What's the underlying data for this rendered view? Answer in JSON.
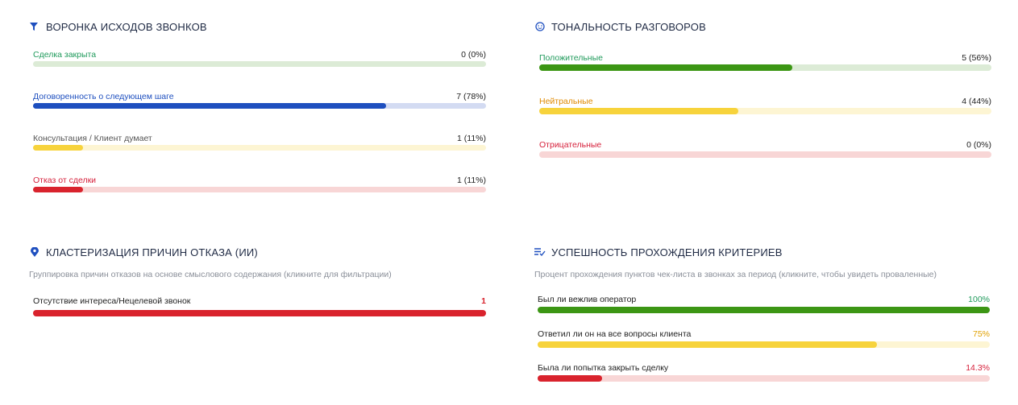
{
  "funnel": {
    "title": "ВОРОНКА ИСХОДОВ ЗВОНКОВ",
    "items": [
      {
        "label": "Сделка закрыта",
        "value": 0,
        "value_label": "0 (0%)",
        "label_color": "#1f9a5b",
        "value_color": "#222222",
        "bar_color": "#3c9614",
        "track_color": "#dcebd6"
      },
      {
        "label": "Договоренность о следующем шаге",
        "value": 78,
        "value_label": "7 (78%)",
        "label_color": "#1e4fbf",
        "value_color": "#222222",
        "bar_color": "#1e4fbf",
        "track_color": "#d3dbf2"
      },
      {
        "label": "Консультация / Клиент думает",
        "value": 11,
        "value_label": "1 (11%)",
        "label_color": "#555555",
        "value_color": "#222222",
        "bar_color": "#f7d33c",
        "track_color": "#fdf5d3"
      },
      {
        "label": "Отказ от сделки",
        "value": 11,
        "value_label": "1 (11%)",
        "label_color": "#d6203b",
        "value_color": "#222222",
        "bar_color": "#d9232d",
        "track_color": "#f8d6d6"
      }
    ]
  },
  "tone": {
    "title": "ТОНАЛЬНОСТЬ РАЗГОВОРОВ",
    "items": [
      {
        "label": "Положительные",
        "value": 56,
        "value_label": "5 (56%)",
        "label_color": "#1f9a5b",
        "value_color": "#222222",
        "bar_color": "#3c9614",
        "track_color": "#dcebd6"
      },
      {
        "label": "Нейтральные",
        "value": 44,
        "value_label": "4 (44%)",
        "label_color": "#e08a00",
        "value_color": "#222222",
        "bar_color": "#f7d33c",
        "track_color": "#fdf5d3"
      },
      {
        "label": "Отрицательные",
        "value": 0,
        "value_label": "0 (0%)",
        "label_color": "#d6203b",
        "value_color": "#222222",
        "bar_color": "#d9232d",
        "track_color": "#f8d6d6"
      }
    ]
  },
  "clusters": {
    "title": "КЛАСТЕРИЗАЦИЯ ПРИЧИН ОТКАЗА (ИИ)",
    "subtitle": "Группировка причин отказов на основе смыслового содержания (кликните для фильтрации)",
    "items": [
      {
        "label": "Отсутствие интереса/Нецелевой звонок",
        "value": 1,
        "label_color": "#222222",
        "value_color": "#d9232d",
        "bar_color": "#d9232d",
        "track_color": "#f8d6d6"
      }
    ]
  },
  "criteria": {
    "title": "УСПЕШНОСТЬ ПРОХОЖДЕНИЯ КРИТЕРИЕВ",
    "subtitle": "Процент прохождения пунктов чек-листа в звонках за период (кликните, чтобы увидеть проваленные)",
    "items": [
      {
        "label": "Был ли вежлив оператор",
        "value": 100,
        "value_label": "100%",
        "label_color": "#222222",
        "value_color": "#1f9a5b",
        "bar_color": "#3c9614",
        "track_color": "#dcebd6"
      },
      {
        "label": "Ответил ли он на все вопросы клиента",
        "value": 75,
        "value_label": "75%",
        "label_color": "#222222",
        "value_color": "#e0a000",
        "bar_color": "#f7d33c",
        "track_color": "#fdf5d3"
      },
      {
        "label": "Была ли попытка закрыть сделку",
        "value": 14.3,
        "value_label": "14.3%",
        "label_color": "#222222",
        "value_color": "#d6203b",
        "bar_color": "#d9232d",
        "track_color": "#f8d6d6"
      }
    ]
  }
}
